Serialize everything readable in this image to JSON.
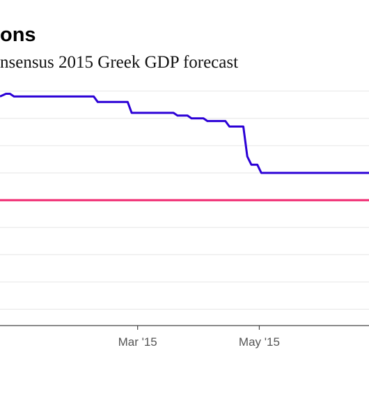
{
  "title": "ons",
  "subtitle": "nsensus 2015 Greek GDP forecast",
  "chart_data": {
    "type": "line",
    "title": "ons",
    "subtitle": "nsensus 2015 Greek GDP forecast",
    "xlabel": "",
    "ylabel": "",
    "x_range": [
      "2014-12-22",
      "2015-06-25"
    ],
    "y_range": [
      -1.8,
      3.0
    ],
    "grid": true,
    "x_ticks": [
      {
        "date": "2015-03-01",
        "label": "Mar '15"
      },
      {
        "date": "2015-05-01",
        "label": "May '15"
      }
    ],
    "y_gridlines": [
      -1.5,
      -1.0,
      -0.5,
      0.0,
      0.5,
      1.0,
      1.5,
      2.0,
      2.5
    ],
    "series": [
      {
        "color": "#2b00d6",
        "points": [
          {
            "x": "2014-12-22",
            "y": 2.4
          },
          {
            "x": "2014-12-25",
            "y": 2.45
          },
          {
            "x": "2014-12-27",
            "y": 2.45
          },
          {
            "x": "2014-12-29",
            "y": 2.4
          },
          {
            "x": "2015-02-07",
            "y": 2.4
          },
          {
            "x": "2015-02-09",
            "y": 2.3
          },
          {
            "x": "2015-02-24",
            "y": 2.3
          },
          {
            "x": "2015-02-26",
            "y": 2.1
          },
          {
            "x": "2015-03-19",
            "y": 2.1
          },
          {
            "x": "2015-03-21",
            "y": 2.05
          },
          {
            "x": "2015-03-26",
            "y": 2.05
          },
          {
            "x": "2015-03-28",
            "y": 2.0
          },
          {
            "x": "2015-04-03",
            "y": 2.0
          },
          {
            "x": "2015-04-05",
            "y": 1.95
          },
          {
            "x": "2015-04-14",
            "y": 1.95
          },
          {
            "x": "2015-04-16",
            "y": 1.85
          },
          {
            "x": "2015-04-23",
            "y": 1.85
          },
          {
            "x": "2015-04-25",
            "y": 1.3
          },
          {
            "x": "2015-04-27",
            "y": 1.15
          },
          {
            "x": "2015-04-30",
            "y": 1.15
          },
          {
            "x": "2015-05-02",
            "y": 1.0
          },
          {
            "x": "2015-06-25",
            "y": 1.0
          }
        ]
      },
      {
        "color": "#f0266e",
        "points": [
          {
            "x": "2014-12-22",
            "y": 0.5
          },
          {
            "x": "2015-06-25",
            "y": 0.5
          }
        ]
      }
    ]
  }
}
